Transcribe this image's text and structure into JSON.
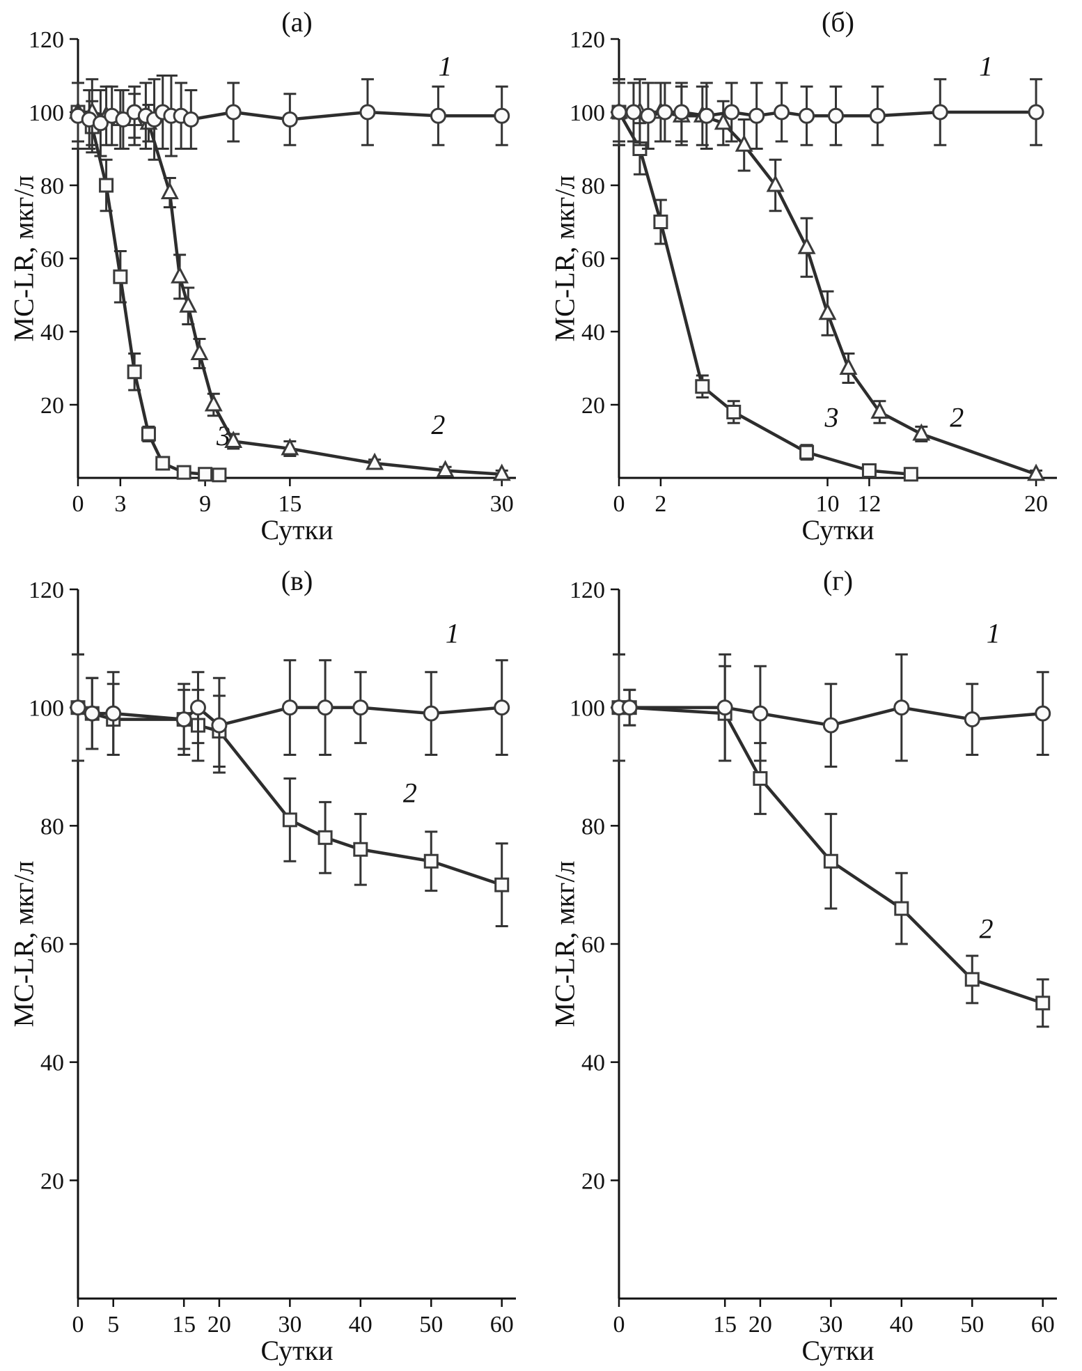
{
  "colors": {
    "axis": "#111111",
    "line": "#2d2d2d",
    "marker_stroke": "#3a3a3a",
    "marker_fill": "#fbfbfb",
    "error_bar": "#333333",
    "text": "#111111",
    "background": "#ffffff"
  },
  "chart_data": [
    {
      "id": "a",
      "type": "line",
      "title": "(а)",
      "xlabel": "Сутки",
      "ylabel": "MC-LR, мкг/л",
      "xlim": [
        0,
        31
      ],
      "ylim": [
        0,
        120
      ],
      "xticks": [
        0,
        3,
        9,
        15,
        30
      ],
      "yticks": [
        20,
        40,
        60,
        80,
        100,
        120
      ],
      "grid": false,
      "legend_position": "inline-labels",
      "series": [
        {
          "name": "1",
          "marker": "circle",
          "label_pos": [
            26,
            110
          ],
          "x": [
            0,
            0.8,
            1.6,
            2.4,
            3.2,
            4,
            4.8,
            5.4,
            6,
            6.6,
            7.3,
            8,
            11,
            15,
            20.5,
            25.5,
            30
          ],
          "y": [
            99,
            98,
            97,
            99,
            98,
            100,
            99,
            98,
            100,
            99,
            99,
            98,
            100,
            98,
            100,
            99,
            99
          ],
          "err": [
            9,
            8,
            9,
            8,
            8,
            7,
            9,
            11,
            10,
            11,
            9,
            8,
            8,
            7,
            9,
            8,
            8
          ]
        },
        {
          "name": "2",
          "marker": "triangle",
          "label_pos": [
            25.5,
            12
          ],
          "x": [
            0,
            1,
            2,
            3,
            4,
            5,
            6.5,
            7.2,
            7.8,
            8.6,
            9.6,
            11,
            15,
            21,
            26,
            30
          ],
          "y": [
            100,
            100,
            99,
            98,
            98,
            97,
            78,
            55,
            47,
            34,
            20,
            10,
            8,
            4,
            2,
            1
          ],
          "err": [
            8,
            9,
            8,
            8,
            7,
            5,
            4,
            6,
            5,
            4,
            3,
            2,
            2,
            1,
            1,
            1
          ]
        },
        {
          "name": "3",
          "marker": "square",
          "label_pos": [
            10.3,
            9
          ],
          "x": [
            0,
            1,
            2,
            3,
            4,
            5,
            6,
            7.5,
            9,
            10
          ],
          "y": [
            100,
            96,
            80,
            55,
            29,
            12,
            4,
            1.5,
            1,
            0.8
          ],
          "err": [
            8,
            7,
            7,
            7,
            5,
            2,
            1.5,
            1,
            0.8,
            0.8
          ]
        }
      ]
    },
    {
      "id": "b",
      "type": "line",
      "title": "(б)",
      "xlabel": "Сутки",
      "ylabel": "MC-LR, мкг/л",
      "xlim": [
        0,
        21
      ],
      "ylim": [
        0,
        120
      ],
      "xticks": [
        0,
        2,
        10,
        12,
        20
      ],
      "yticks": [
        20,
        40,
        60,
        80,
        100,
        120
      ],
      "grid": false,
      "legend_position": "inline-labels",
      "series": [
        {
          "name": "1",
          "marker": "circle",
          "label_pos": [
            17.6,
            110
          ],
          "x": [
            0,
            0.7,
            1.4,
            2.2,
            3,
            4.2,
            5.4,
            6.6,
            7.8,
            9,
            10.4,
            12.4,
            15.4,
            20
          ],
          "y": [
            100,
            100,
            99,
            100,
            100,
            99,
            100,
            99,
            100,
            99,
            99,
            99,
            100,
            100
          ],
          "err": [
            9,
            8,
            9,
            8,
            8,
            9,
            8,
            9,
            8,
            8,
            8,
            8,
            9,
            9
          ]
        },
        {
          "name": "2",
          "marker": "triangle",
          "label_pos": [
            16.2,
            14
          ],
          "x": [
            0,
            1,
            2,
            3,
            4,
            5,
            6,
            7.5,
            9,
            10,
            11,
            12.5,
            14.5,
            20
          ],
          "y": [
            100,
            100,
            100,
            99,
            99,
            97,
            91,
            80,
            63,
            45,
            30,
            18,
            12,
            1
          ],
          "err": [
            8,
            9,
            8,
            8,
            8,
            6,
            7,
            7,
            8,
            6,
            4,
            3,
            2,
            1
          ]
        },
        {
          "name": "3",
          "marker": "square",
          "label_pos": [
            10.2,
            14
          ],
          "x": [
            0,
            1,
            2,
            4,
            5.5,
            9,
            12,
            14
          ],
          "y": [
            100,
            90,
            70,
            25,
            18,
            7,
            2,
            1
          ],
          "err": [
            9,
            7,
            6,
            3,
            3,
            2,
            1,
            1
          ]
        }
      ]
    },
    {
      "id": "v",
      "type": "line",
      "title": "(в)",
      "xlabel": "Сутки",
      "ylabel": "MC-LR, мкг/л",
      "xlim": [
        0,
        62
      ],
      "ylim": [
        0,
        120
      ],
      "xticks": [
        0,
        5,
        15,
        20,
        30,
        40,
        50,
        60
      ],
      "yticks": [
        20,
        40,
        60,
        80,
        100,
        120
      ],
      "grid": false,
      "legend_position": "inline-labels",
      "series": [
        {
          "name": "1",
          "marker": "circle",
          "label_pos": [
            53,
            111
          ],
          "x": [
            0,
            2,
            5,
            15,
            17,
            20,
            30,
            35,
            40,
            50,
            60
          ],
          "y": [
            100,
            99,
            99,
            98,
            100,
            97,
            100,
            100,
            100,
            99,
            100
          ],
          "err": [
            9,
            6,
            7,
            6,
            6,
            8,
            8,
            8,
            6,
            7,
            8
          ]
        },
        {
          "name": "2",
          "marker": "square",
          "label_pos": [
            47,
            84
          ],
          "x": [
            0,
            2,
            5,
            15,
            17,
            20,
            30,
            35,
            40,
            50,
            60
          ],
          "y": [
            100,
            99,
            98,
            98,
            97,
            96,
            81,
            78,
            76,
            74,
            70
          ],
          "err": [
            9,
            6,
            6,
            5,
            6,
            6,
            7,
            6,
            6,
            5,
            7
          ]
        }
      ]
    },
    {
      "id": "g",
      "type": "line",
      "title": "(г)",
      "xlabel": "Сутки",
      "ylabel": "MC-LR, мкг/л",
      "xlim": [
        0,
        62
      ],
      "ylim": [
        0,
        120
      ],
      "xticks": [
        0,
        15,
        20,
        30,
        40,
        50,
        60
      ],
      "yticks": [
        20,
        40,
        60,
        80,
        100,
        120
      ],
      "grid": false,
      "legend_position": "inline-labels",
      "series": [
        {
          "name": "1",
          "marker": "circle",
          "label_pos": [
            53,
            111
          ],
          "x": [
            0,
            1.5,
            15,
            20,
            30,
            40,
            50,
            60
          ],
          "y": [
            100,
            100,
            100,
            99,
            97,
            100,
            98,
            99
          ],
          "err": [
            9,
            3,
            9,
            8,
            7,
            9,
            6,
            7
          ]
        },
        {
          "name": "2",
          "marker": "square",
          "label_pos": [
            52,
            61
          ],
          "x": [
            0,
            1.5,
            15,
            20,
            30,
            40,
            50,
            60
          ],
          "y": [
            100,
            100,
            99,
            88,
            74,
            66,
            54,
            50
          ],
          "err": [
            9,
            3,
            8,
            6,
            8,
            6,
            4,
            4
          ]
        }
      ]
    }
  ]
}
